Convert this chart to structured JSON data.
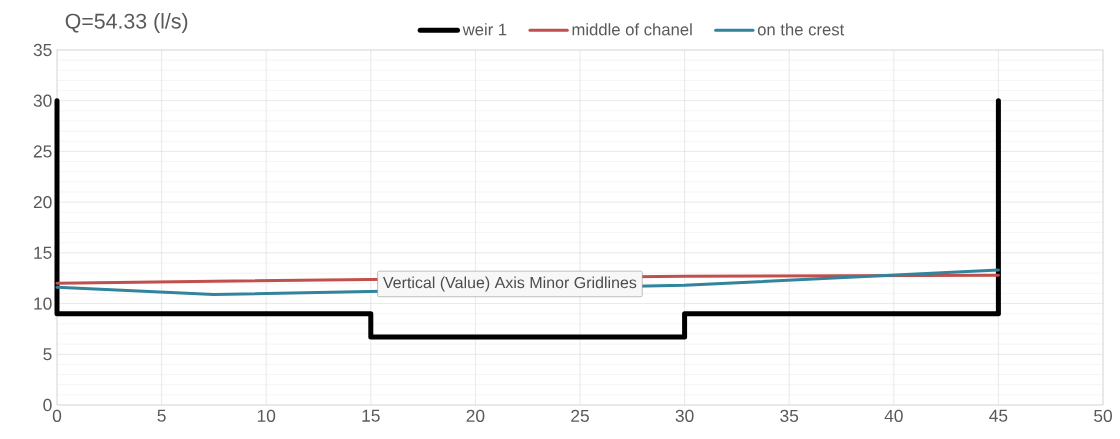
{
  "chart_data": {
    "type": "line",
    "title": "Q=54.33 (l/s)",
    "series": [
      {
        "name": "weir 1",
        "color": "#000000",
        "x": [
          0,
          0,
          15,
          15,
          30,
          30,
          45,
          45
        ],
        "values": [
          30,
          9,
          9,
          6.7,
          6.7,
          9,
          9,
          30
        ]
      },
      {
        "name": "middle of chanel",
        "color": "#c0504d",
        "x": [
          0,
          7.5,
          30,
          45
        ],
        "values": [
          12.0,
          12.2,
          12.7,
          12.8
        ]
      },
      {
        "name": "on the crest",
        "color": "#31849b",
        "x": [
          0,
          7.5,
          30,
          45
        ],
        "values": [
          11.6,
          10.9,
          11.8,
          13.3
        ]
      }
    ],
    "xlim": [
      0,
      50
    ],
    "xticks": [
      0,
      5,
      10,
      15,
      20,
      25,
      30,
      35,
      40,
      45,
      50
    ],
    "ylim": [
      0,
      35
    ],
    "yticks": [
      0,
      5,
      10,
      15,
      20,
      25,
      30,
      35
    ],
    "grid": true,
    "legend": "top",
    "marker": "none",
    "line_style": "solid",
    "annotations": [
      "Vertical (Value) Axis Minor Gridlines"
    ]
  }
}
